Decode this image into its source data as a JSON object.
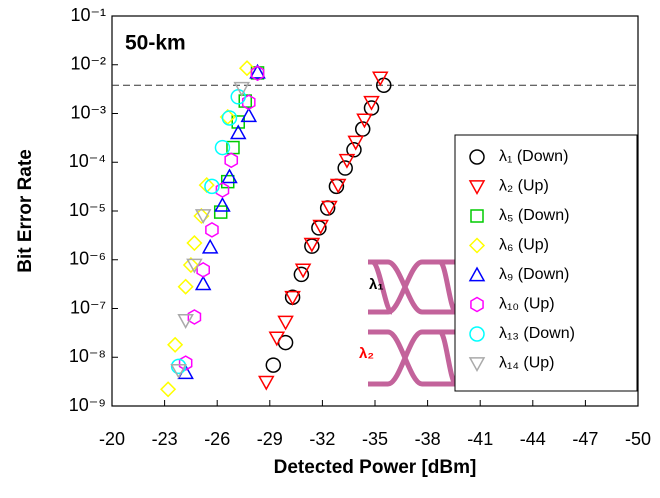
{
  "chart_data": {
    "type": "scatter",
    "annotation": "50-km",
    "xlabel": "Detected Power [dBm]",
    "ylabel": "Bit Error Rate",
    "xlim": [
      -20,
      -50
    ],
    "xticks": [
      -20,
      -23,
      -26,
      -29,
      -32,
      -35,
      -38,
      -41,
      -44,
      -47,
      -50
    ],
    "ylim": [
      1e-09,
      0.1
    ],
    "ylog": true,
    "yticks": [
      {
        "value": 0.1,
        "label": "10⁻¹"
      },
      {
        "value": 0.01,
        "label": "10⁻²"
      },
      {
        "value": 0.001,
        "label": "10⁻³"
      },
      {
        "value": 0.0001,
        "label": "10⁻⁴"
      },
      {
        "value": 1e-05,
        "label": "10⁻⁵"
      },
      {
        "value": 1e-06,
        "label": "10⁻⁶"
      },
      {
        "value": 1e-07,
        "label": "10⁻⁷"
      },
      {
        "value": 1e-08,
        "label": "10⁻⁸"
      },
      {
        "value": 1e-09,
        "label": "10⁻⁹"
      }
    ],
    "threshold": 0.0038,
    "legend": "right",
    "inset_labels": [
      "λ₁",
      "λ₂"
    ],
    "series": [
      {
        "name": "λ₁ (Down)",
        "color": "#000000",
        "marker": "circle",
        "x": [
          -29.2,
          -29.9,
          -30.3,
          -30.8,
          -31.4,
          -31.8,
          -32.3,
          -32.8,
          -33.3,
          -33.8,
          -34.3,
          -34.8,
          -35.5
        ],
        "values": [
          6.9e-09,
          2e-08,
          1.7e-07,
          5e-07,
          1.9e-06,
          4.5e-06,
          1.15e-05,
          3.2e-05,
          7.6e-05,
          0.00018,
          0.00048,
          0.0013,
          0.0038
        ]
      },
      {
        "name": "λ₂ (Up)",
        "color": "#ff0000",
        "marker": "triangle-down",
        "x": [
          -28.8,
          -29.4,
          -29.9,
          -30.3,
          -30.9,
          -31.4,
          -31.9,
          -32.4,
          -32.9,
          -33.4,
          -33.9,
          -34.4,
          -34.8,
          -35.3
        ],
        "values": [
          3.1e-09,
          2.5e-08,
          5.3e-08,
          1.7e-07,
          6.2e-07,
          2.1e-06,
          4.9e-06,
          1.2e-05,
          3.4e-05,
          0.00011,
          0.00026,
          0.00074,
          0.0017,
          0.0054
        ]
      },
      {
        "name": "λ₅ (Down)",
        "color": "#00cc00",
        "marker": "square",
        "x": [
          -26.2,
          -26.6,
          -26.9,
          -27.2,
          -27.6,
          -28.3
        ],
        "values": [
          9.5e-06,
          4e-05,
          0.0002,
          0.00067,
          0.0018,
          0.0068
        ]
      },
      {
        "name": "λ₆ (Up)",
        "color": "#ffff00",
        "marker": "diamond",
        "x": [
          -23.2,
          -23.6,
          -24.2,
          -24.5,
          -24.7,
          -25.1,
          -25.4,
          -26.6,
          -27.7
        ],
        "values": [
          2.2e-09,
          1.8e-08,
          2.8e-07,
          7.8e-07,
          2.2e-06,
          7.9e-06,
          3.4e-05,
          0.00085,
          0.0085
        ]
      },
      {
        "name": "λ₉ (Down)",
        "color": "#0000ff",
        "marker": "triangle",
        "x": [
          -24.2,
          -25.2,
          -25.6,
          -26.3,
          -26.7,
          -27.2,
          -27.8,
          -28.3
        ],
        "values": [
          4.8e-09,
          3.2e-07,
          1.8e-06,
          1.3e-05,
          5e-05,
          0.0004,
          0.0009,
          0.007
        ]
      },
      {
        "name": "λ₁₀ (Up)",
        "color": "#ff00ff",
        "marker": "hexagon",
        "x": [
          -24.2,
          -24.7,
          -25.2,
          -25.7,
          -26.3,
          -26.8,
          -27.8,
          -28.3
        ],
        "values": [
          7.6e-09,
          6.7e-08,
          6.2e-07,
          4.1e-06,
          2.7e-05,
          0.00011,
          0.0017,
          0.0067
        ]
      },
      {
        "name": "λ₁₃ (Down)",
        "color": "#00ffff",
        "marker": "circle",
        "x": [
          -23.8,
          -25.7,
          -26.3,
          -26.7,
          -27.2
        ],
        "values": [
          6.5e-09,
          3.2e-05,
          0.0002,
          0.00081,
          0.0022
        ]
      },
      {
        "name": "λ₁₄ (Up)",
        "color": "#aaaaaa",
        "marker": "triangle-down",
        "x": [
          -23.8,
          -24.2,
          -24.7,
          -25.2,
          -27.4
        ],
        "values": [
          5.4e-09,
          5.7e-08,
          7.8e-07,
          8.1e-06,
          0.0033
        ]
      }
    ]
  }
}
